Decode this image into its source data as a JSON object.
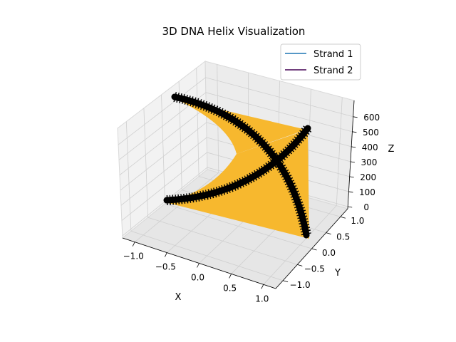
{
  "chart_data": {
    "type": "line",
    "projection": "3d",
    "title": "3D DNA Helix Visualization",
    "xlabel": "X",
    "ylabel": "Y",
    "zlabel": "Z",
    "xticks": [
      "−1.0",
      "−0.5",
      "0.0",
      "0.5",
      "1.0"
    ],
    "yticks": [
      "−1.0",
      "−0.5",
      "0.0",
      "0.5",
      "1.0"
    ],
    "zticks": [
      "0",
      "100",
      "200",
      "300",
      "400",
      "500",
      "600"
    ],
    "xlim": [
      -1.0,
      1.0
    ],
    "ylim": [
      -1.0,
      1.0
    ],
    "zlim": [
      0,
      600
    ],
    "grid": true,
    "legend_position": "top-right",
    "series": [
      {
        "name": "Strand 1",
        "color": "#1f77b4"
      },
      {
        "name": "Strand 2",
        "color": "#440154"
      }
    ],
    "surface_color": "#f7b82e",
    "marker_color": "#000000"
  }
}
